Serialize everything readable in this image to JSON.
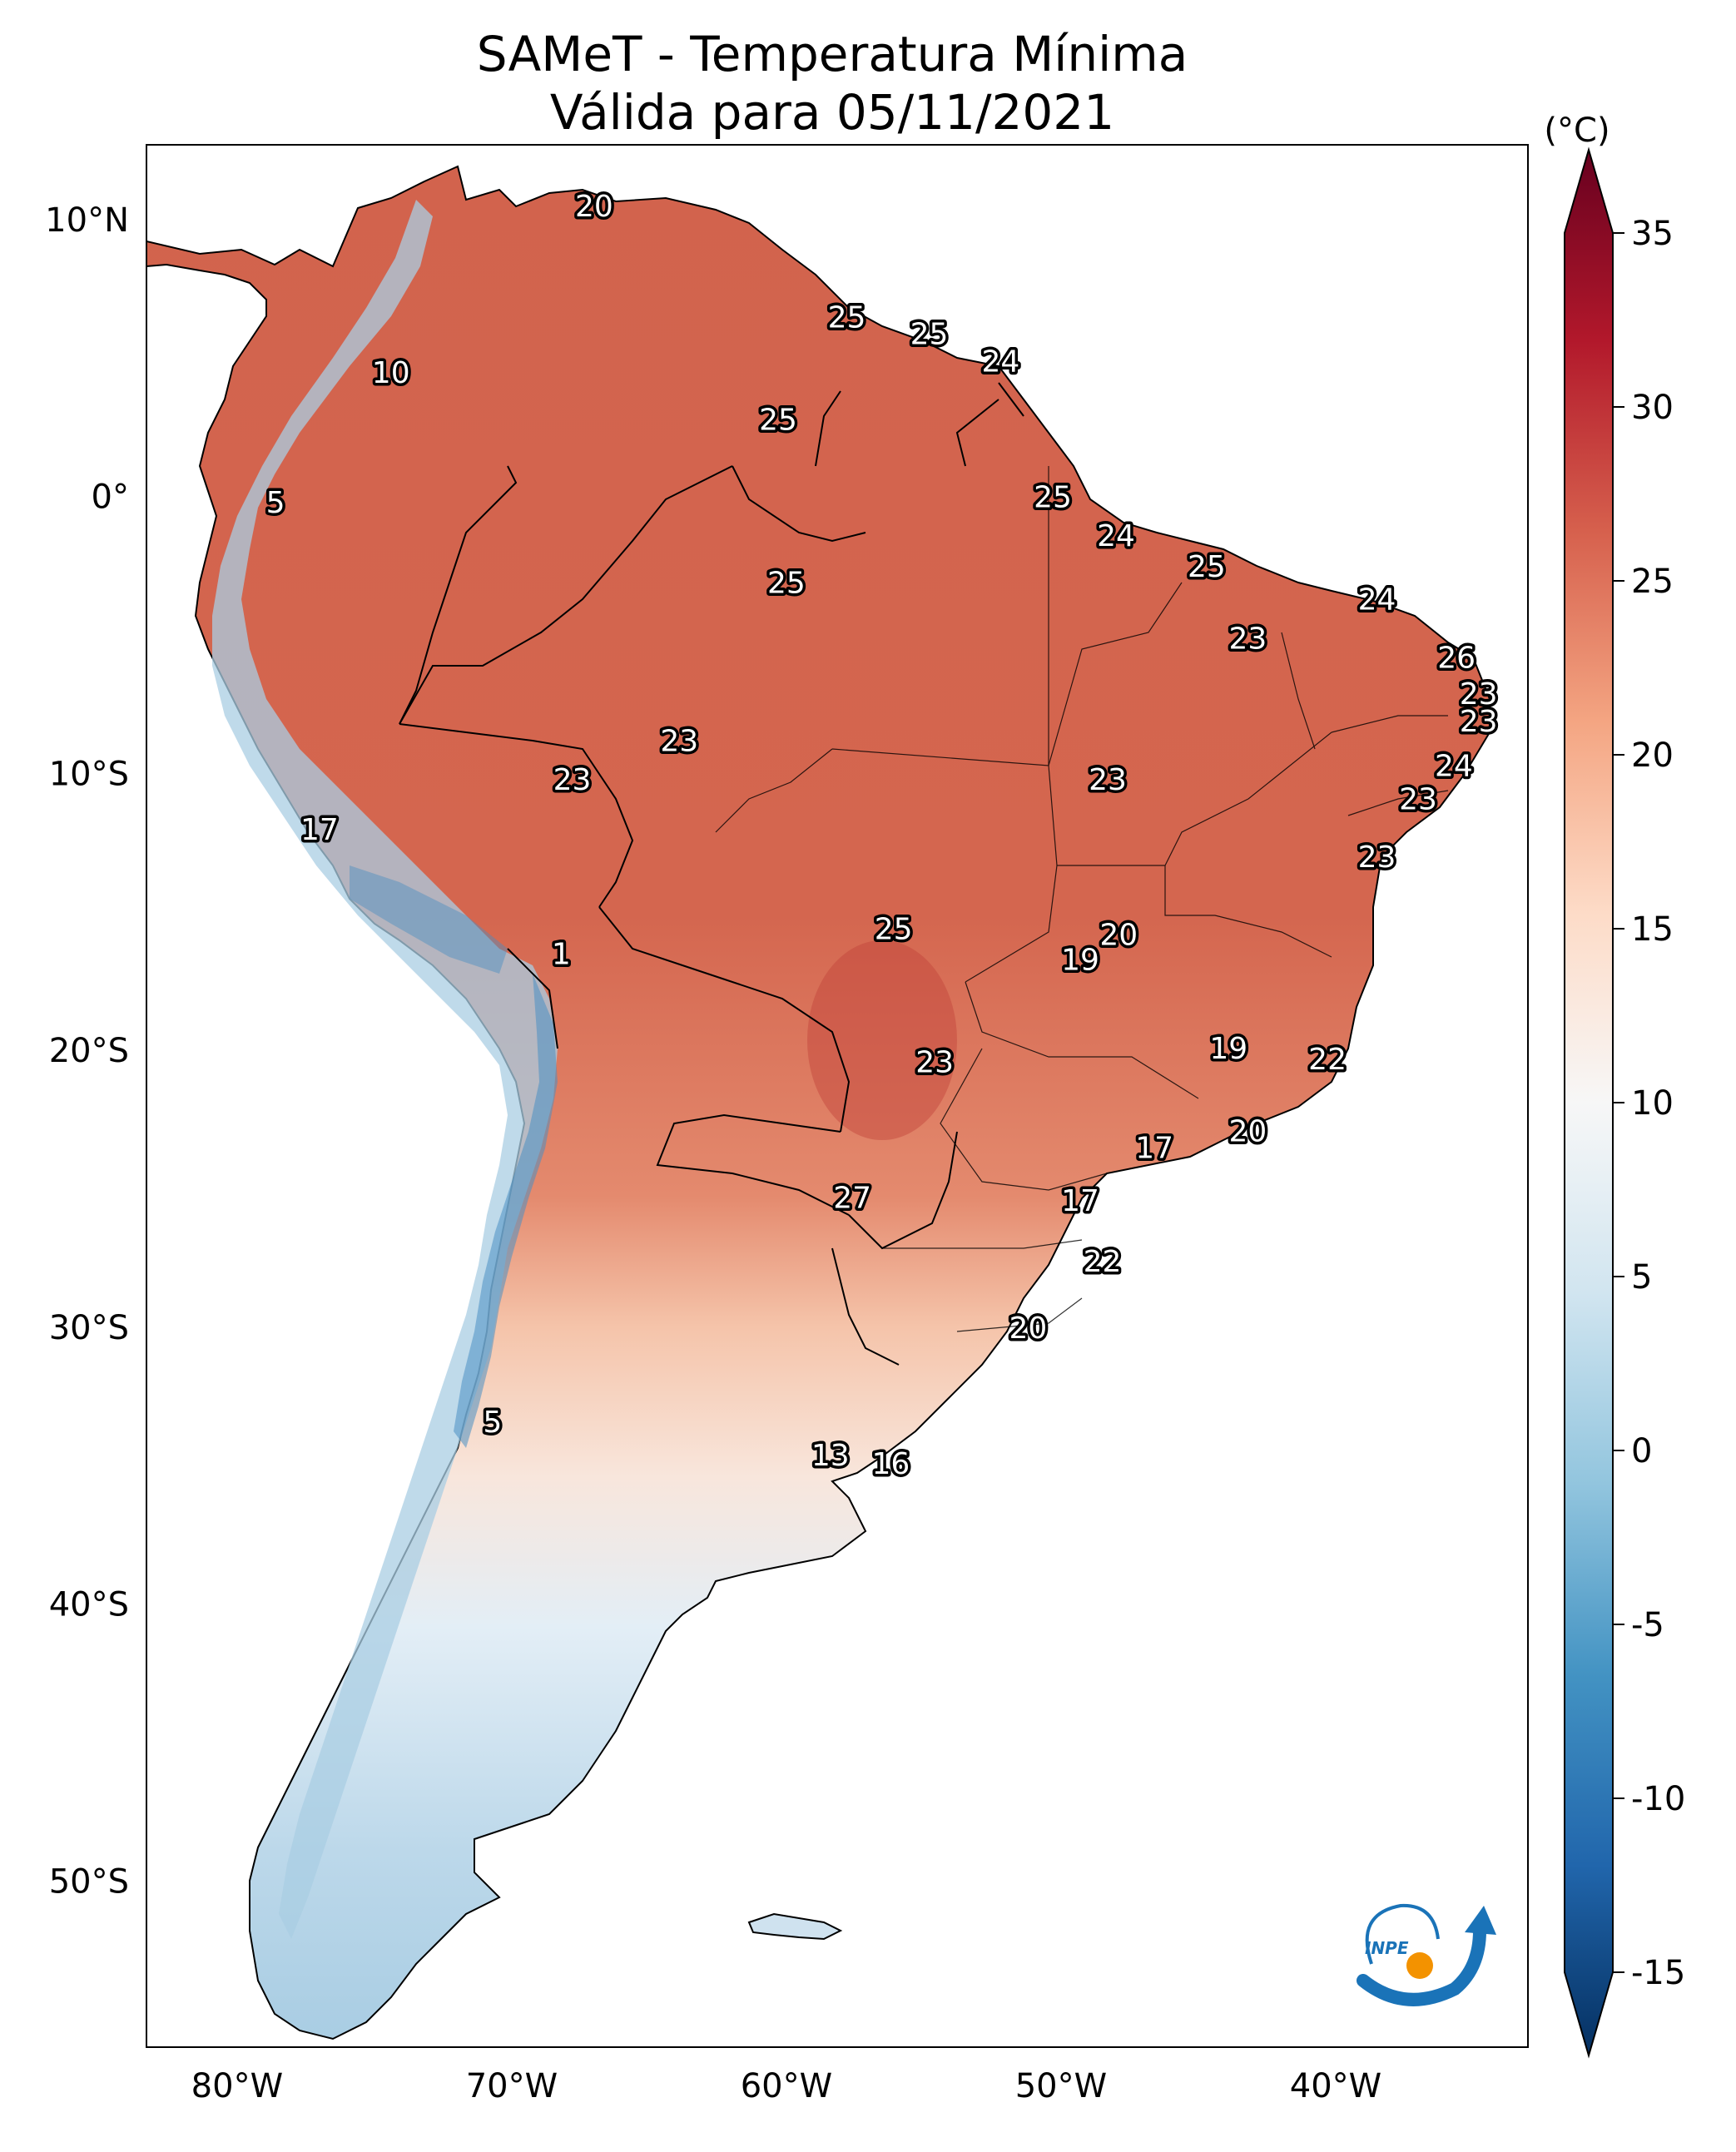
{
  "title": "SAMeT - Temperatura Mínima",
  "subtitle": "Válida para 05/11/2021",
  "colorbar": {
    "unit_label": "(°C)",
    "min": -15,
    "max": 35,
    "ticks": [
      "35",
      "30",
      "25",
      "20",
      "15",
      "10",
      "5",
      "0",
      "-5",
      "-10",
      "-15"
    ],
    "colors": [
      "#053061",
      "#2166ac",
      "#4393c3",
      "#92c5de",
      "#d1e5f0",
      "#f7f7f7",
      "#fddbc7",
      "#f4a582",
      "#d6604d",
      "#b2182b",
      "#67001f"
    ]
  },
  "map": {
    "lat_ticks": [
      "10°N",
      "0°",
      "10°S",
      "20°S",
      "30°S",
      "40°S",
      "50°S"
    ],
    "lon_ticks": [
      "80°W",
      "70°W",
      "60°W",
      "50°W",
      "40°W"
    ],
    "ocean_color": "#ffffff",
    "border_color": "#000000"
  },
  "logo_text": "INPE",
  "labels": [
    {
      "value": "20",
      "lat": 10.5,
      "lon": -67.0
    },
    {
      "value": "25",
      "lat": 6.5,
      "lon": -57.8
    },
    {
      "value": "25",
      "lat": 5.9,
      "lon": -54.8
    },
    {
      "value": "24",
      "lat": 4.9,
      "lon": -52.2
    },
    {
      "value": "10",
      "lat": 4.5,
      "lon": -74.4
    },
    {
      "value": "25",
      "lat": 2.8,
      "lon": -60.3
    },
    {
      "value": "5",
      "lat": -0.2,
      "lon": -78.6
    },
    {
      "value": "25",
      "lat": 0.0,
      "lon": -50.3
    },
    {
      "value": "24",
      "lat": -1.4,
      "lon": -48.0
    },
    {
      "value": "25",
      "lat": -2.5,
      "lon": -44.7
    },
    {
      "value": "25",
      "lat": -3.1,
      "lon": -60.0
    },
    {
      "value": "24",
      "lat": -3.7,
      "lon": -38.5
    },
    {
      "value": "23",
      "lat": -5.1,
      "lon": -43.2
    },
    {
      "value": "26",
      "lat": -5.8,
      "lon": -35.6
    },
    {
      "value": "23",
      "lat": -7.1,
      "lon": -34.8
    },
    {
      "value": "23",
      "lat": -8.1,
      "lon": -34.8
    },
    {
      "value": "23",
      "lat": -8.8,
      "lon": -63.9
    },
    {
      "value": "24",
      "lat": -9.7,
      "lon": -35.7
    },
    {
      "value": "23",
      "lat": -10.2,
      "lon": -67.8
    },
    {
      "value": "23",
      "lat": -10.2,
      "lon": -48.3
    },
    {
      "value": "23",
      "lat": -10.9,
      "lon": -37.0
    },
    {
      "value": "17",
      "lat": -12.0,
      "lon": -77.0
    },
    {
      "value": "23",
      "lat": -13.0,
      "lon": -38.5
    },
    {
      "value": "25",
      "lat": -15.6,
      "lon": -56.1
    },
    {
      "value": "20",
      "lat": -15.8,
      "lon": -47.9
    },
    {
      "value": "1",
      "lat": -16.5,
      "lon": -68.2
    },
    {
      "value": "19",
      "lat": -16.7,
      "lon": -49.3
    },
    {
      "value": "19",
      "lat": -19.9,
      "lon": -43.9
    },
    {
      "value": "22",
      "lat": -20.3,
      "lon": -40.3
    },
    {
      "value": "23",
      "lat": -20.4,
      "lon": -54.6
    },
    {
      "value": "20",
      "lat": -22.9,
      "lon": -43.2
    },
    {
      "value": "17",
      "lat": -23.5,
      "lon": -46.6
    },
    {
      "value": "27",
      "lat": -25.3,
      "lon": -57.6
    },
    {
      "value": "17",
      "lat": -25.4,
      "lon": -49.3
    },
    {
      "value": "22",
      "lat": -27.6,
      "lon": -48.5
    },
    {
      "value": "20",
      "lat": -30.0,
      "lon": -51.2
    },
    {
      "value": "5",
      "lat": -33.4,
      "lon": -70.7
    },
    {
      "value": "13",
      "lat": -34.6,
      "lon": -58.4
    },
    {
      "value": "16",
      "lat": -34.9,
      "lon": -56.2
    }
  ]
}
